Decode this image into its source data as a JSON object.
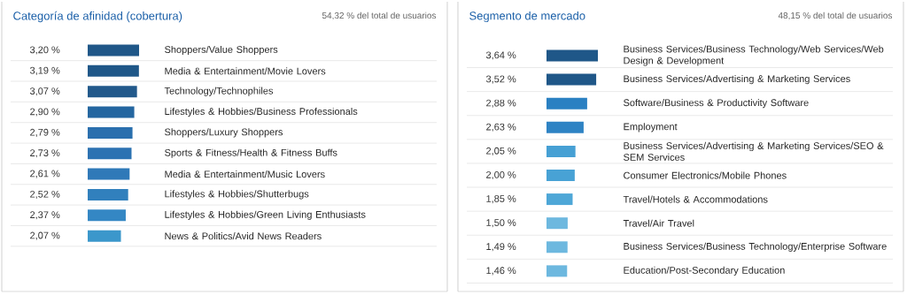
{
  "chart_data": [
    {
      "type": "bar",
      "orientation": "horizontal",
      "title": "Categoría de afinidad (cobertura)",
      "subtitle": "54,32 % del total de usuarios",
      "categories": [
        "Shoppers/Value Shoppers",
        "Media & Entertainment/Movie Lovers",
        "Technology/Technophiles",
        "Lifestyles & Hobbies/Business Professionals",
        "Shoppers/Luxury Shoppers",
        "Sports & Fitness/Health & Fitness Buffs",
        "Media & Entertainment/Music Lovers",
        "Lifestyles & Hobbies/Shutterbugs",
        "Lifestyles & Hobbies/Green Living Enthusiasts",
        "News & Politics/Avid News Readers"
      ],
      "values": [
        3.2,
        3.19,
        3.07,
        2.9,
        2.79,
        2.73,
        2.61,
        2.52,
        2.37,
        2.07
      ],
      "value_labels": [
        "3,20 %",
        "3,19 %",
        "3,07 %",
        "2,90 %",
        "2,79 %",
        "2,73 %",
        "2,61 %",
        "2,52 %",
        "2,37 %",
        "2,07 %"
      ],
      "colors": [
        "#1f5788",
        "#1f5788",
        "#22598b",
        "#2466a0",
        "#2a6fae",
        "#2c72b2",
        "#2f79b8",
        "#3180bd",
        "#3487c4",
        "#3b97cb"
      ]
    },
    {
      "type": "bar",
      "orientation": "horizontal",
      "title": "Segmento de mercado",
      "subtitle": "48,15 % del total de usuarios",
      "categories": [
        "Business Services/Business Technology/Web Services/Web Design & Development",
        "Business Services/Advertising & Marketing Services",
        "Software/Business & Productivity Software",
        "Employment",
        "Business Services/Advertising & Marketing Services/SEO & SEM Services",
        "Consumer Electronics/Mobile Phones",
        "Travel/Hotels & Accommodations",
        "Travel/Air Travel",
        "Business Services/Business Technology/Enterprise Software",
        "Education/Post-Secondary Education"
      ],
      "values": [
        3.64,
        3.52,
        2.88,
        2.63,
        2.05,
        2.0,
        1.85,
        1.5,
        1.49,
        1.46
      ],
      "value_labels": [
        "3,64 %",
        "3,52 %",
        "2,88 %",
        "2,63 %",
        "2,05 %",
        "2,00 %",
        "1,85 %",
        "1,50 %",
        "1,49 %",
        "1,46 %"
      ],
      "colors": [
        "#1f5788",
        "#1f5788",
        "#2a80c2",
        "#2e83c4",
        "#46a0d4",
        "#48a2d5",
        "#4ea7d7",
        "#6db8df",
        "#6db8df",
        "#6db8df"
      ]
    }
  ]
}
